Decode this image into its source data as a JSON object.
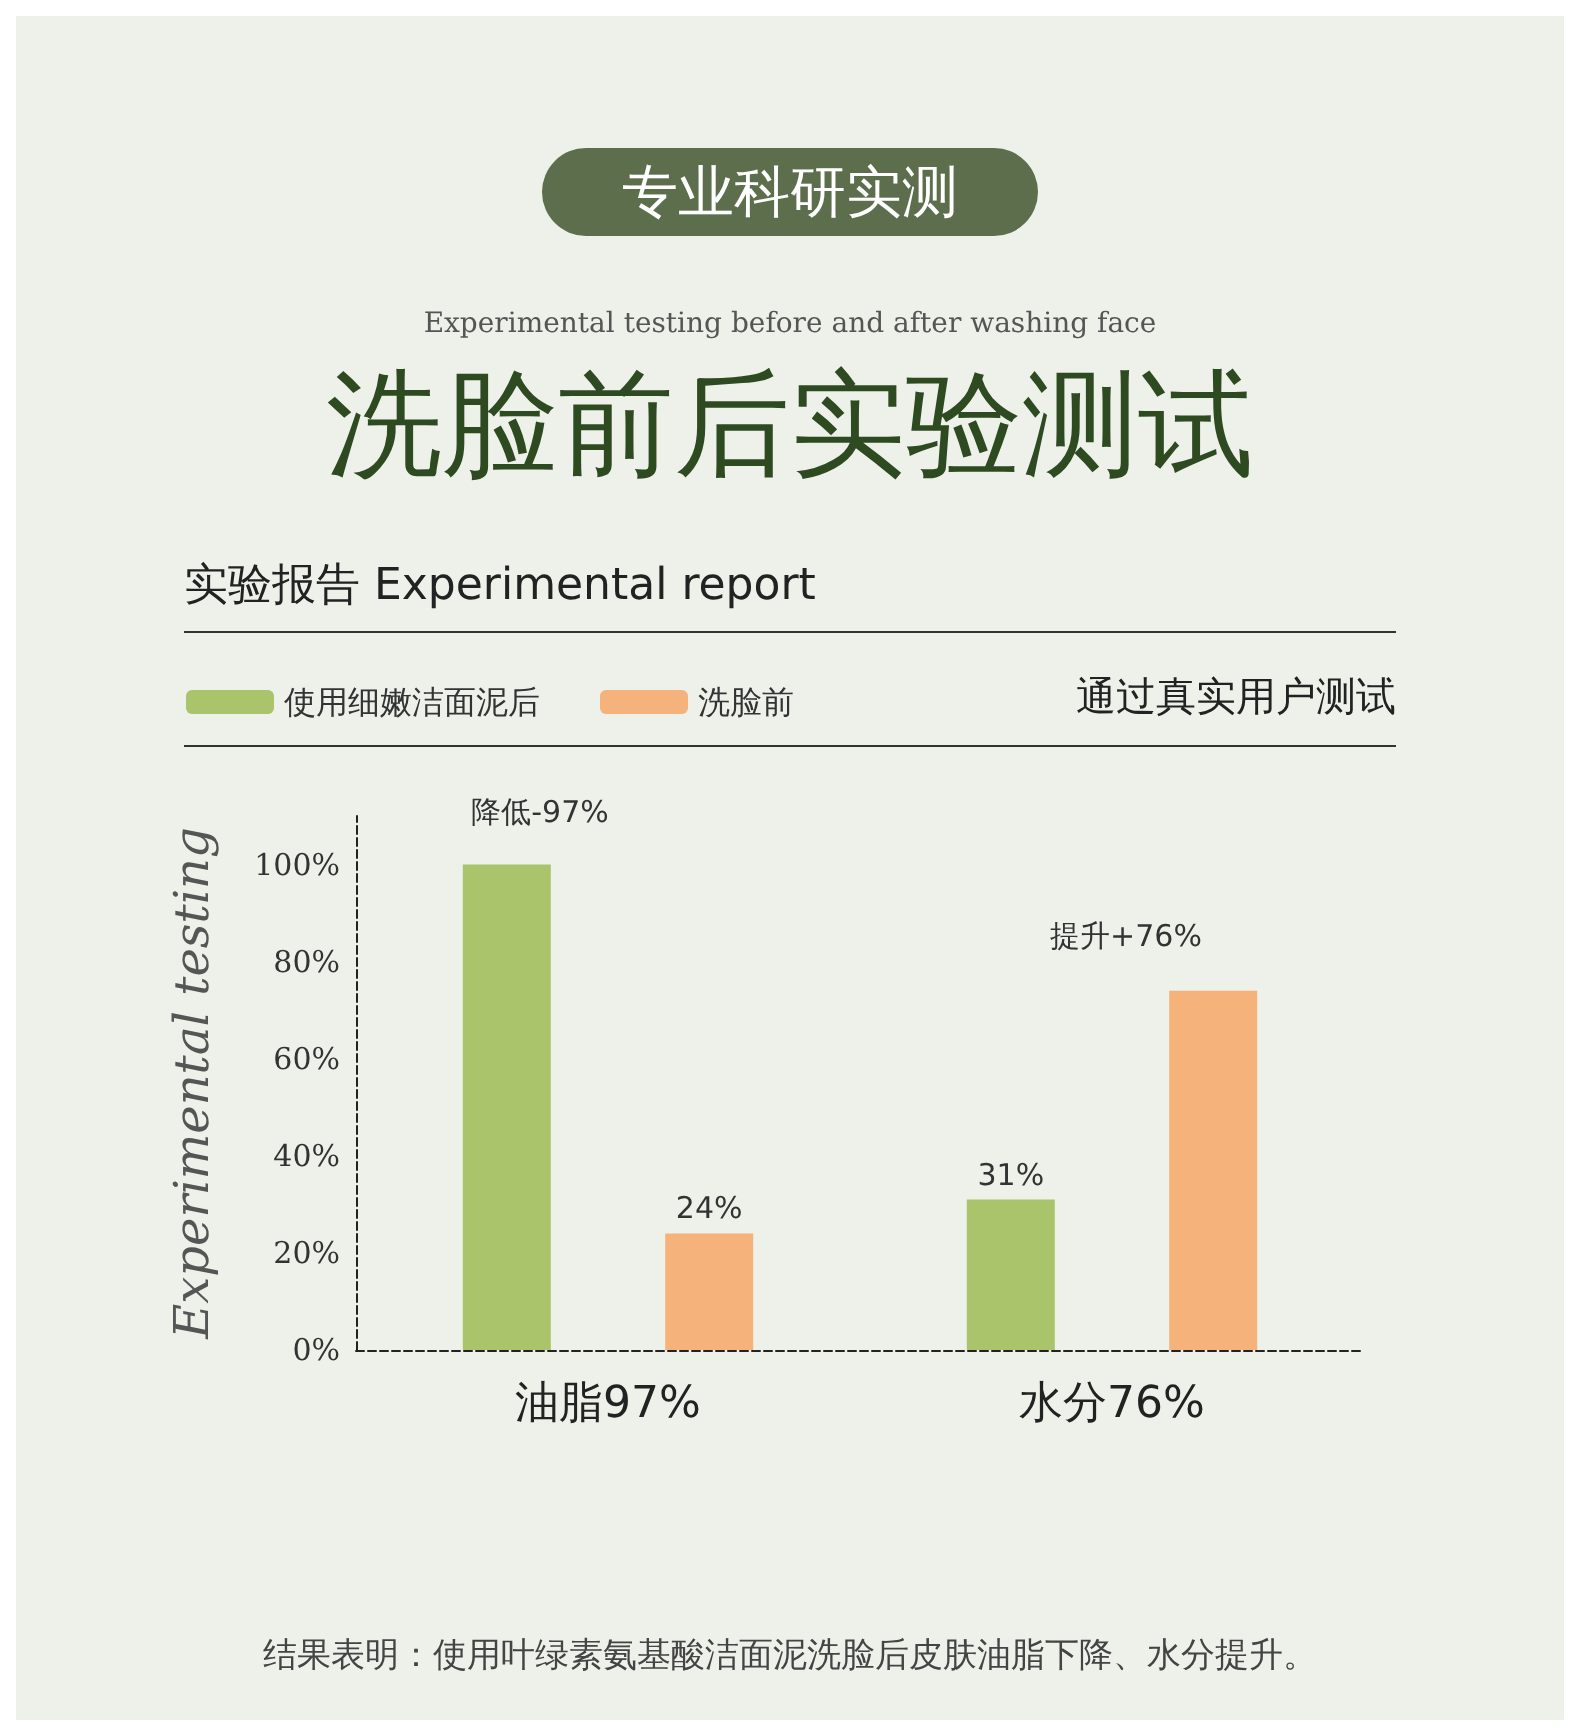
{
  "chart_data": {
    "type": "bar",
    "title": "洗脸前后实验测试",
    "subtitle": "Experimental testing before and after washing face",
    "ylabel": "Experimental testing",
    "categories": [
      "油脂97%",
      "水分76%"
    ],
    "series": [
      {
        "name": "使用细嫩洁面泥后",
        "color": "#a9c46a",
        "values": [
          100,
          31
        ],
        "value_labels": [
          null,
          "31%"
        ]
      },
      {
        "name": "洗脸前",
        "color": "#f5b27a",
        "values": [
          24,
          74
        ],
        "value_labels": [
          "24%",
          null
        ]
      }
    ],
    "ylim": [
      0,
      110
    ],
    "yticks": [
      {
        "value": 0,
        "label": "0%"
      },
      {
        "value": 20,
        "label": "20%"
      },
      {
        "value": 40,
        "label": "40%"
      },
      {
        "value": 60,
        "label": "60%"
      },
      {
        "value": 80,
        "label": "80%"
      },
      {
        "value": 100,
        "label": "100%"
      }
    ],
    "grid": false,
    "legend": "top left",
    "annotations": [
      "专业科研实测",
      "实验报告 Experimental report",
      "通过真实用户测试",
      "结果表明：使用叶绿素氨基酸洁面泥洗脸后皮肤油脂下降、水分提升。",
      "降低-97%",
      "提升+76%"
    ]
  }
}
